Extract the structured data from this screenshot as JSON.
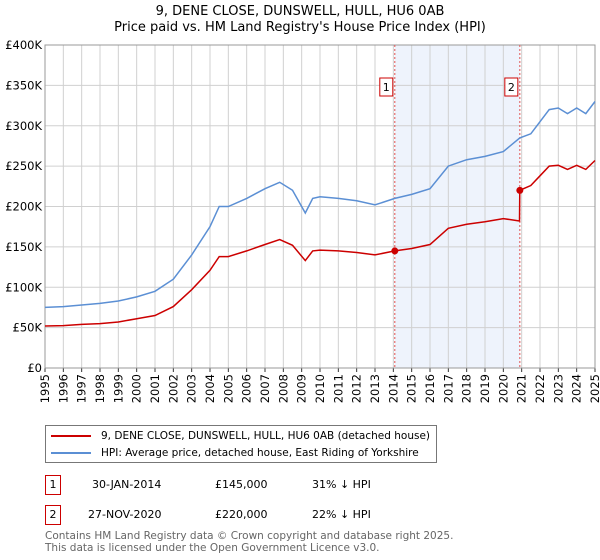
{
  "title": "9, DENE CLOSE, DUNSWELL, HULL, HU6 0AB",
  "subtitle": "Price paid vs. HM Land Registry's House Price Index (HPI)",
  "chart_data": {
    "type": "line",
    "xlim": [
      1995,
      2025
    ],
    "ylim": [
      0,
      400000
    ],
    "x_ticks": [
      "1995",
      "1996",
      "1997",
      "1998",
      "1999",
      "2000",
      "2001",
      "2002",
      "2003",
      "2004",
      "2005",
      "2006",
      "2007",
      "2008",
      "2009",
      "2010",
      "2011",
      "2012",
      "2013",
      "2014",
      "2015",
      "2016",
      "2017",
      "2018",
      "2019",
      "2020",
      "2021",
      "2022",
      "2023",
      "2024",
      "2025"
    ],
    "y_ticks": [
      {
        "v": 0,
        "label": "£0"
      },
      {
        "v": 50000,
        "label": "£50K"
      },
      {
        "v": 100000,
        "label": "£100K"
      },
      {
        "v": 150000,
        "label": "£150K"
      },
      {
        "v": 200000,
        "label": "£200K"
      },
      {
        "v": 250000,
        "label": "£250K"
      },
      {
        "v": 300000,
        "label": "£300K"
      },
      {
        "v": 350000,
        "label": "£350K"
      },
      {
        "v": 400000,
        "label": "£400K"
      }
    ],
    "grid": true,
    "series": [
      {
        "name": "9, DENE CLOSE, DUNSWELL, HULL, HU6 0AB (detached house)",
        "color": "#cc0000",
        "x": [
          1995,
          1996,
          1997,
          1998,
          1999,
          2000,
          2001,
          2002,
          2003,
          2004,
          2004.5,
          2005,
          2006,
          2007,
          2007.8,
          2008.5,
          2009.2,
          2009.6,
          2010,
          2011,
          2012,
          2013,
          2014.08,
          2015,
          2016,
          2017,
          2018,
          2019,
          2020,
          2020.88,
          2020.9,
          2021.5,
          2022,
          2022.5,
          2023,
          2023.5,
          2024,
          2024.5,
          2025
        ],
        "y": [
          52000,
          52500,
          54000,
          55000,
          57000,
          61000,
          65000,
          76000,
          97000,
          121000,
          138000,
          138000,
          145000,
          153000,
          159000,
          152000,
          133000,
          145000,
          146000,
          145000,
          143000,
          140000,
          145000,
          148000,
          153000,
          173000,
          178000,
          181000,
          185000,
          182000,
          220000,
          226000,
          238000,
          250000,
          251000,
          246000,
          251000,
          246000,
          257000
        ]
      },
      {
        "name": "HPI: Average price, detached house, East Riding of Yorkshire",
        "color": "#5b8fd4",
        "x": [
          1995,
          1996,
          1997,
          1998,
          1999,
          2000,
          2001,
          2002,
          2003,
          2004,
          2004.5,
          2005,
          2006,
          2007,
          2007.8,
          2008.5,
          2009.2,
          2009.6,
          2010,
          2011,
          2012,
          2013,
          2014.08,
          2015,
          2016,
          2017,
          2018,
          2019,
          2020,
          2020.9,
          2021.5,
          2022,
          2022.5,
          2023,
          2023.5,
          2024,
          2024.5,
          2025
        ],
        "y": [
          75000,
          76000,
          78000,
          80000,
          83000,
          88000,
          95000,
          110000,
          140000,
          175000,
          200000,
          200000,
          210000,
          222000,
          230000,
          220000,
          192000,
          210000,
          212000,
          210000,
          207000,
          202000,
          210000,
          215000,
          222000,
          250000,
          258000,
          262000,
          268000,
          285000,
          290000,
          305000,
          320000,
          322000,
          315000,
          322000,
          315000,
          330000
        ]
      }
    ],
    "annotations": [
      {
        "id": "1",
        "x": 2014.08,
        "price": 145000
      },
      {
        "id": "2",
        "x": 2020.9,
        "price": 220000
      }
    ],
    "shade": [
      2014.08,
      2020.9
    ],
    "legend_placement": "bottom"
  },
  "legend": [
    {
      "label": "9, DENE CLOSE, DUNSWELL, HULL, HU6 0AB (detached house)",
      "color": "#cc0000"
    },
    {
      "label": "HPI: Average price, detached house, East Riding of Yorkshire",
      "color": "#5b8fd4"
    }
  ],
  "sales": [
    {
      "id": "1",
      "date": "30-JAN-2014",
      "price": "£145,000",
      "delta": "31% ↓ HPI"
    },
    {
      "id": "2",
      "date": "27-NOV-2020",
      "price": "£220,000",
      "delta": "22% ↓ HPI"
    }
  ],
  "footer": [
    "Contains HM Land Registry data © Crown copyright and database right 2025.",
    "This data is licensed under the Open Government Licence v3.0."
  ]
}
